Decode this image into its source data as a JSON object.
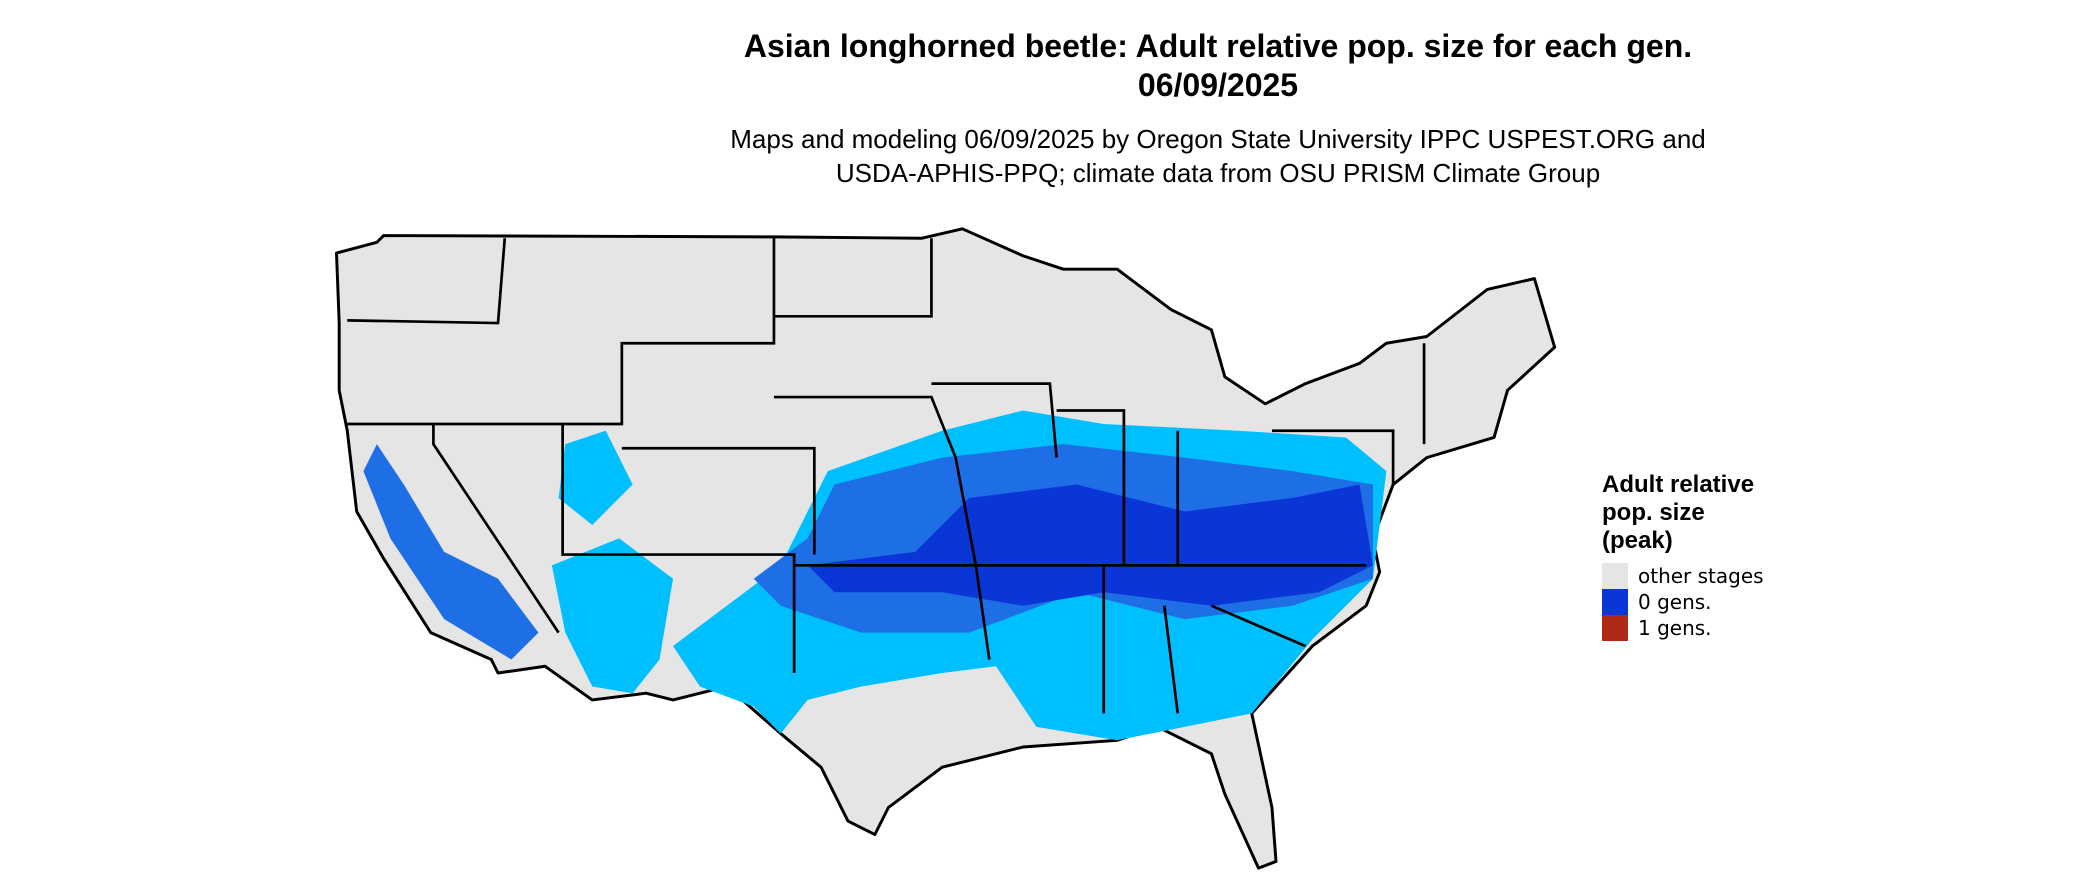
{
  "title": [
    "Asian longhorned beetle: Adult relative pop. size for each gen.",
    "06/09/2025"
  ],
  "subtitle": [
    "Maps and modeling 06/09/2025 by Oregon State University IPPC USPEST.ORG and",
    "USDA-APHIS-PPQ; climate data from OSU PRISM Climate Group"
  ],
  "legend": {
    "title": [
      "Adult relative",
      "pop. size",
      "(peak)"
    ],
    "items": [
      {
        "label": "other stages",
        "color": "#e5e5e5"
      },
      {
        "label": "0 gens.",
        "color": "#0a36d8"
      },
      {
        "label": "1 gens.",
        "color": "#b02816"
      }
    ]
  }
}
